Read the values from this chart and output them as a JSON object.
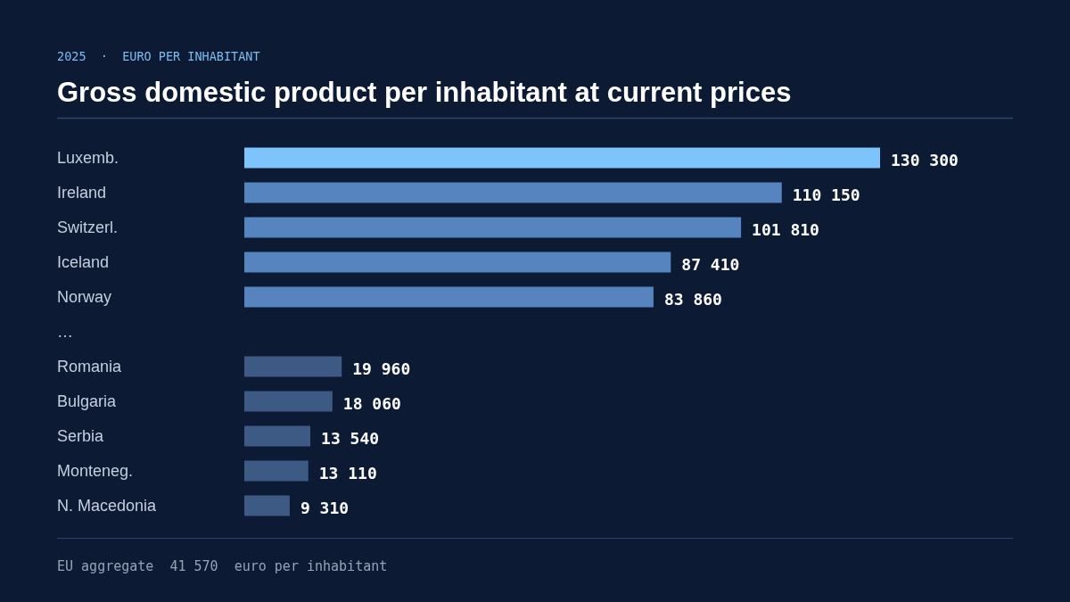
{
  "chart_data": {
    "type": "bar",
    "orientation": "horizontal",
    "title": "Gross domestic product per inhabitant at current prices",
    "subtitle": "2025  ·  EURO PER INHABITANT",
    "categories": [
      "Luxemb.",
      "Ireland",
      "Switzerl.",
      "Iceland",
      "Norway",
      "…",
      "Romania",
      "Bulgaria",
      "Serbia",
      "Monteneg.",
      "N. Macedonia"
    ],
    "values": [
      130300,
      110150,
      101810,
      87410,
      83860,
      null,
      19960,
      18060,
      13540,
      13110,
      9310
    ],
    "colors": [
      "#7cc4fa",
      "#5584bf",
      "#5584bf",
      "#5584bf",
      "#5584bf",
      null,
      "#3d5a85",
      "#3d5a85",
      "#3d5a85",
      "#3d5a85",
      "#3d5a85"
    ],
    "value_labels": [
      "130 300",
      "110 150",
      "101 810",
      "87 410",
      "83 860",
      null,
      "19 960",
      "18 060",
      "13 540",
      "13 110",
      "9 310"
    ],
    "tick_labels": "y",
    "annotations": [
      "EU aggregate  41 570  euro per inhabitant"
    ]
  }
}
